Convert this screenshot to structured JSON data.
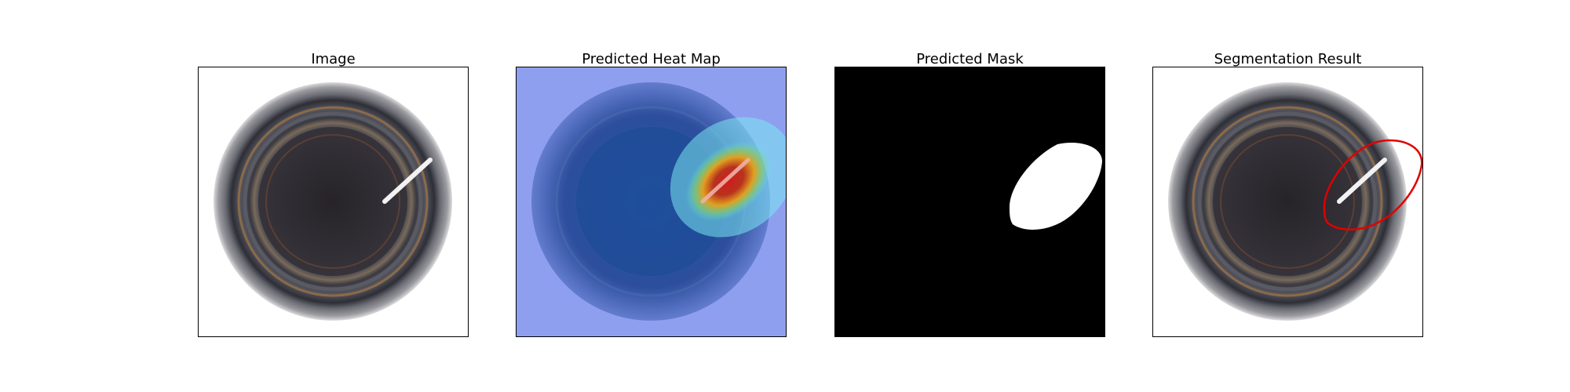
{
  "panels": [
    {
      "title": "Image"
    },
    {
      "title": "Predicted Heat Map"
    },
    {
      "title": "Predicted Mask"
    },
    {
      "title": "Segmentation Result"
    }
  ],
  "colors": {
    "mask_background": "#000000",
    "mask_region": "#ffffff",
    "contour": "#e00000",
    "defect_streak": "#f5f5f5",
    "heat_hot": "#c81e1e",
    "heat_cool": "#8a9cf0"
  }
}
